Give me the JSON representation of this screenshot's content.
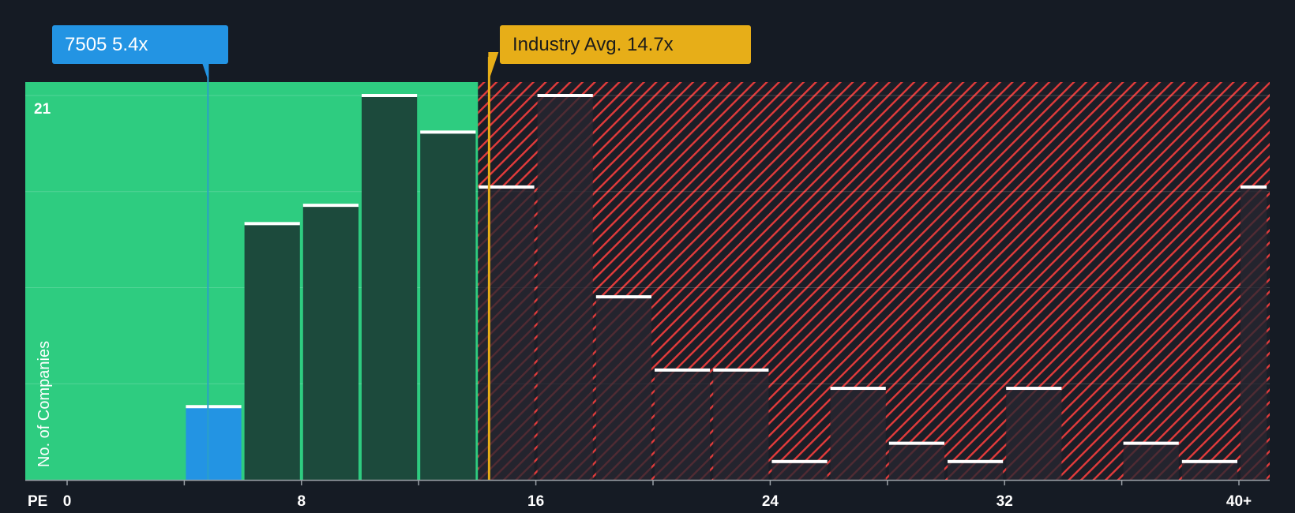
{
  "chart_data": {
    "type": "bar",
    "xlabel": "PE",
    "ylabel": "No. of Companies",
    "x_ticks": [
      "0",
      "8",
      "16",
      "24",
      "32",
      "40+"
    ],
    "y_tick_label": "21",
    "ylim": [
      0,
      21
    ],
    "bins": [
      {
        "from": 4,
        "to": 6,
        "value": 4,
        "highlight": true
      },
      {
        "from": 6,
        "to": 8,
        "value": 14,
        "highlight": false
      },
      {
        "from": 8,
        "to": 10,
        "value": 15,
        "highlight": false
      },
      {
        "from": 10,
        "to": 12,
        "value": 21,
        "highlight": false
      },
      {
        "from": 12,
        "to": 14,
        "value": 19,
        "highlight": false
      },
      {
        "from": 14,
        "to": 16,
        "value": 16,
        "highlight": false
      },
      {
        "from": 16,
        "to": 18,
        "value": 21,
        "highlight": false
      },
      {
        "from": 18,
        "to": 20,
        "value": 10,
        "highlight": false
      },
      {
        "from": 20,
        "to": 22,
        "value": 6,
        "highlight": false
      },
      {
        "from": 22,
        "to": 24,
        "value": 6,
        "highlight": false
      },
      {
        "from": 24,
        "to": 26,
        "value": 1,
        "highlight": false
      },
      {
        "from": 26,
        "to": 28,
        "value": 5,
        "highlight": false
      },
      {
        "from": 28,
        "to": 30,
        "value": 2,
        "highlight": false
      },
      {
        "from": 30,
        "to": 32,
        "value": 1,
        "highlight": false
      },
      {
        "from": 32,
        "to": 34,
        "value": 5,
        "highlight": false
      },
      {
        "from": 36,
        "to": 38,
        "value": 2,
        "highlight": false
      },
      {
        "from": 38,
        "to": 40,
        "value": 1,
        "highlight": false
      },
      {
        "from": 40,
        "to": 41,
        "value": 16,
        "highlight": false
      }
    ],
    "company": {
      "ticker": "7505",
      "pe": 5.4,
      "label": "7505 5.4x"
    },
    "industry": {
      "avg_pe": 14.7,
      "label": "Industry Avg. 14.7x"
    },
    "fair_zone_end": 14.7,
    "colors": {
      "background": "#151b24",
      "undervalued_zone": "#2ecc80",
      "bar_green": "#1e6e4c",
      "bar_dark": "#1c4a3c",
      "company_bar": "#2394e3",
      "industry_line": "#e7ae18",
      "hatch": "#e23b3b",
      "overvalued_bar": "#262631"
    }
  }
}
